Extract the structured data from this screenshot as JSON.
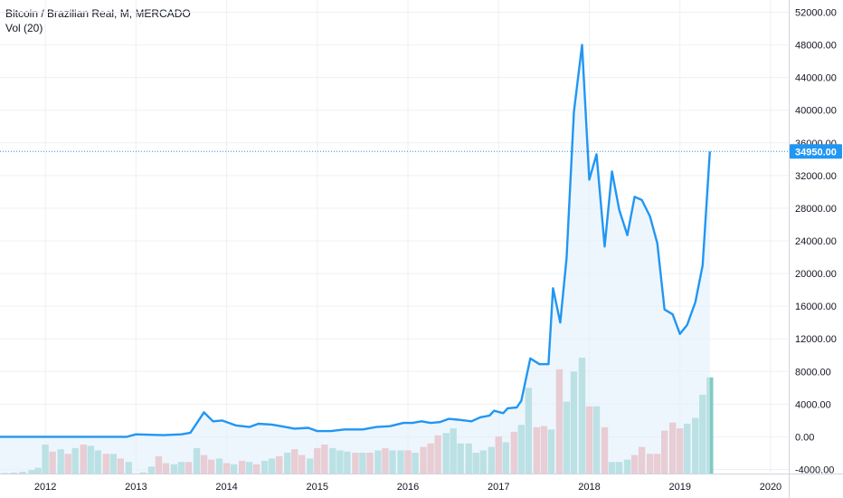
{
  "header": {
    "symbol": "Bitcoin / Brazilian Real, M, MERCADO",
    "volume_label": "Vol (20)"
  },
  "colors": {
    "line": "#2196f3",
    "fill": "#e3f0fb",
    "vol_up": "#80cbc4",
    "vol_down": "#ef9a9a",
    "price_label_bg": "#2196f3"
  },
  "chart_data": {
    "type": "line",
    "title": "Bitcoin / Brazilian Real, M, MERCADO",
    "xlabel": "",
    "ylabel": "",
    "x_ticks": [
      "2012",
      "2013",
      "2014",
      "2015",
      "2016",
      "2017",
      "2018",
      "2019",
      "2020"
    ],
    "y_ticks": [
      "52000.00",
      "48000.00",
      "44000.00",
      "40000.00",
      "36000.00",
      "32000.00",
      "28000.00",
      "24000.00",
      "20000.00",
      "16000.00",
      "12000.00",
      "8000.00",
      "4000.00",
      "0.00",
      "-4000.00"
    ],
    "ylim": [
      -4500,
      53500
    ],
    "xlim": [
      2011.5,
      2020.2
    ],
    "last_price": 34950,
    "last_price_label": "34950.00",
    "grid": true,
    "series": [
      {
        "values": [
          [
            2011.5,
            0
          ],
          [
            2012.0,
            0
          ],
          [
            2012.5,
            0
          ],
          [
            2012.9,
            0
          ],
          [
            2013.0,
            300
          ],
          [
            2013.3,
            200
          ],
          [
            2013.5,
            300
          ],
          [
            2013.6,
            500
          ],
          [
            2013.75,
            3000
          ],
          [
            2013.85,
            1900
          ],
          [
            2013.95,
            2000
          ],
          [
            2014.1,
            1400
          ],
          [
            2014.25,
            1200
          ],
          [
            2014.35,
            1600
          ],
          [
            2014.5,
            1500
          ],
          [
            2014.6,
            1300
          ],
          [
            2014.75,
            1000
          ],
          [
            2014.9,
            1100
          ],
          [
            2015.0,
            700
          ],
          [
            2015.15,
            700
          ],
          [
            2015.3,
            900
          ],
          [
            2015.5,
            900
          ],
          [
            2015.65,
            1200
          ],
          [
            2015.8,
            1300
          ],
          [
            2015.95,
            1700
          ],
          [
            2016.05,
            1700
          ],
          [
            2016.15,
            1900
          ],
          [
            2016.25,
            1700
          ],
          [
            2016.35,
            1800
          ],
          [
            2016.45,
            2200
          ],
          [
            2016.55,
            2100
          ],
          [
            2016.7,
            1900
          ],
          [
            2016.8,
            2400
          ],
          [
            2016.9,
            2600
          ],
          [
            2016.95,
            3200
          ],
          [
            2017.05,
            2900
          ],
          [
            2017.1,
            3500
          ],
          [
            2017.2,
            3600
          ],
          [
            2017.25,
            4400
          ],
          [
            2017.35,
            9600
          ],
          [
            2017.45,
            8900
          ],
          [
            2017.55,
            8900
          ],
          [
            2017.6,
            18200
          ],
          [
            2017.68,
            14000
          ],
          [
            2017.75,
            21900
          ],
          [
            2017.83,
            39800
          ],
          [
            2017.92,
            48000
          ],
          [
            2018.0,
            31500
          ],
          [
            2018.08,
            34600
          ],
          [
            2018.17,
            23300
          ],
          [
            2018.25,
            32500
          ],
          [
            2018.33,
            27800
          ],
          [
            2018.42,
            24700
          ],
          [
            2018.5,
            29400
          ],
          [
            2018.58,
            29000
          ],
          [
            2018.67,
            27000
          ],
          [
            2018.75,
            23700
          ],
          [
            2018.83,
            15600
          ],
          [
            2018.92,
            15000
          ],
          [
            2019.0,
            12600
          ],
          [
            2019.08,
            13700
          ],
          [
            2019.17,
            16500
          ],
          [
            2019.25,
            21000
          ],
          [
            2019.33,
            34950
          ]
        ]
      }
    ],
    "volume_series": {
      "ylim": [
        0,
        10000
      ],
      "bars": [
        [
          2011.55,
          50,
          "up"
        ],
        [
          2011.65,
          80,
          "up"
        ],
        [
          2011.75,
          150,
          "up"
        ],
        [
          2011.85,
          300,
          "up"
        ],
        [
          2011.92,
          500,
          "up"
        ],
        [
          2012.0,
          2500,
          "up"
        ],
        [
          2012.08,
          1900,
          "down"
        ],
        [
          2012.17,
          2100,
          "up"
        ],
        [
          2012.25,
          1700,
          "down"
        ],
        [
          2012.33,
          2200,
          "up"
        ],
        [
          2012.42,
          2500,
          "down"
        ],
        [
          2012.5,
          2400,
          "up"
        ],
        [
          2012.58,
          2000,
          "up"
        ],
        [
          2012.67,
          1700,
          "down"
        ],
        [
          2012.75,
          1700,
          "up"
        ],
        [
          2012.83,
          1300,
          "down"
        ],
        [
          2012.92,
          1000,
          "up"
        ],
        [
          2013.08,
          100,
          "up"
        ],
        [
          2013.17,
          600,
          "up"
        ],
        [
          2013.25,
          1500,
          "down"
        ],
        [
          2013.33,
          900,
          "down"
        ],
        [
          2013.42,
          800,
          "up"
        ],
        [
          2013.5,
          1000,
          "up"
        ],
        [
          2013.58,
          1000,
          "down"
        ],
        [
          2013.67,
          2200,
          "up"
        ],
        [
          2013.75,
          1600,
          "down"
        ],
        [
          2013.83,
          1200,
          "down"
        ],
        [
          2013.92,
          1300,
          "up"
        ],
        [
          2014.0,
          900,
          "down"
        ],
        [
          2014.08,
          800,
          "up"
        ],
        [
          2014.17,
          1100,
          "down"
        ],
        [
          2014.25,
          1000,
          "up"
        ],
        [
          2014.33,
          800,
          "down"
        ],
        [
          2014.42,
          1100,
          "up"
        ],
        [
          2014.5,
          1300,
          "up"
        ],
        [
          2014.58,
          1500,
          "down"
        ],
        [
          2014.67,
          1800,
          "up"
        ],
        [
          2014.75,
          2100,
          "down"
        ],
        [
          2014.83,
          1600,
          "down"
        ],
        [
          2014.92,
          1300,
          "up"
        ],
        [
          2015.0,
          2200,
          "down"
        ],
        [
          2015.08,
          2500,
          "down"
        ],
        [
          2015.17,
          2200,
          "up"
        ],
        [
          2015.25,
          2000,
          "up"
        ],
        [
          2015.33,
          1900,
          "up"
        ],
        [
          2015.42,
          1800,
          "down"
        ],
        [
          2015.5,
          1800,
          "up"
        ],
        [
          2015.58,
          1800,
          "down"
        ],
        [
          2015.67,
          2000,
          "up"
        ],
        [
          2015.75,
          2200,
          "down"
        ],
        [
          2015.83,
          2000,
          "up"
        ],
        [
          2015.92,
          2000,
          "up"
        ],
        [
          2016.0,
          2000,
          "down"
        ],
        [
          2016.08,
          1800,
          "up"
        ],
        [
          2016.17,
          2300,
          "down"
        ],
        [
          2016.25,
          2600,
          "down"
        ],
        [
          2016.33,
          3300,
          "down"
        ],
        [
          2016.42,
          3500,
          "up"
        ],
        [
          2016.5,
          3900,
          "up"
        ],
        [
          2016.58,
          2600,
          "up"
        ],
        [
          2016.67,
          2600,
          "up"
        ],
        [
          2016.75,
          1800,
          "up"
        ],
        [
          2016.83,
          2000,
          "up"
        ],
        [
          2016.92,
          2300,
          "up"
        ],
        [
          2017.0,
          3200,
          "down"
        ],
        [
          2017.08,
          2700,
          "up"
        ],
        [
          2017.17,
          3600,
          "down"
        ],
        [
          2017.25,
          4200,
          "up"
        ],
        [
          2017.33,
          7400,
          "up"
        ],
        [
          2017.42,
          4000,
          "down"
        ],
        [
          2017.5,
          4100,
          "down"
        ],
        [
          2017.58,
          3800,
          "up"
        ],
        [
          2017.67,
          9000,
          "down"
        ],
        [
          2017.75,
          6200,
          "up"
        ],
        [
          2017.83,
          8800,
          "up"
        ],
        [
          2017.92,
          10000,
          "up"
        ],
        [
          2018.0,
          5800,
          "down"
        ],
        [
          2018.08,
          5800,
          "up"
        ],
        [
          2018.17,
          4000,
          "down"
        ],
        [
          2018.25,
          1000,
          "up"
        ],
        [
          2018.33,
          1000,
          "up"
        ],
        [
          2018.42,
          1200,
          "up"
        ],
        [
          2018.5,
          1600,
          "down"
        ],
        [
          2018.58,
          2300,
          "down"
        ],
        [
          2018.67,
          1700,
          "down"
        ],
        [
          2018.75,
          1700,
          "down"
        ],
        [
          2018.83,
          3700,
          "down"
        ],
        [
          2018.92,
          4400,
          "down"
        ],
        [
          2019.0,
          3900,
          "down"
        ],
        [
          2019.08,
          4300,
          "up"
        ],
        [
          2019.17,
          4800,
          "up"
        ],
        [
          2019.25,
          6800,
          "up"
        ],
        [
          2019.33,
          8300,
          "up"
        ]
      ]
    }
  }
}
